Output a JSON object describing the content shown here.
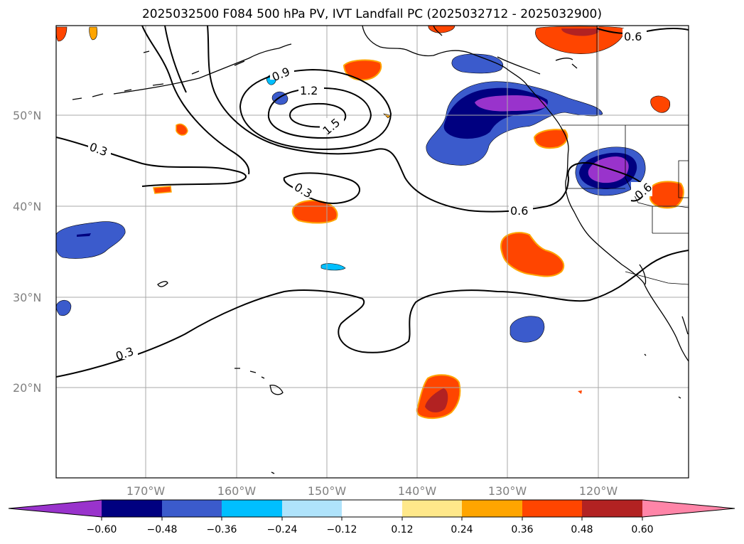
{
  "title": "2025032500 F084 500 hPa PV, IVT Landfall PC (2025032712 - 2025032900)",
  "map": {
    "lat_ticks": [
      "50°N",
      "40°N",
      "30°N",
      "20°N"
    ],
    "lon_ticks": [
      "170°W",
      "160°W",
      "150°W",
      "140°W",
      "130°W",
      "120°W"
    ],
    "contour_labels": [
      "0.9",
      "1.2",
      "1.5",
      "0.3",
      "0.3",
      "0.3",
      "0.6",
      "0.6",
      "0.6"
    ]
  },
  "colorbar": {
    "labels": [
      "−0.60",
      "−0.48",
      "−0.36",
      "−0.24",
      "−0.12",
      "0.12",
      "0.24",
      "0.36",
      "0.48",
      "0.60"
    ],
    "colors": [
      "#9933cc",
      "#000080",
      "#3b5bcc",
      "#00bfff",
      "#afe3fb",
      "#ffffff",
      "#ffe88a",
      "#ffa500",
      "#ff4500",
      "#b22222",
      "#ff85a8"
    ]
  },
  "palette": {
    "purple": "#9933cc",
    "navy": "#000080",
    "blue": "#3b5bcc",
    "cyan": "#00bfff",
    "lightblue": "#afe3fb",
    "yellow": "#ffe88a",
    "orange": "#ffa500",
    "redorange": "#ff4500",
    "firebrick": "#b22222",
    "pink": "#ff85a8"
  }
}
